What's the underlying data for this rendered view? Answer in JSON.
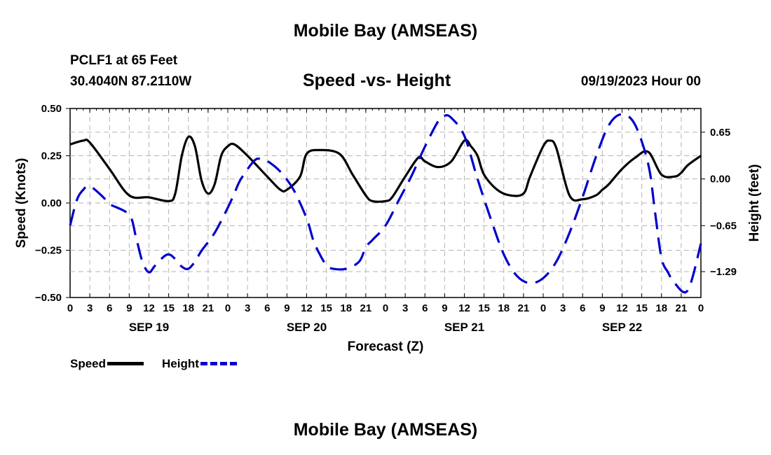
{
  "header": {
    "title": "Mobile Bay (AMSEAS)",
    "station": "PCLF1 at 65 Feet",
    "coords": "30.4040N  87.2110W",
    "chart_title": "Speed -vs- Height",
    "datetime": "09/19/2023 Hour 00"
  },
  "footer": {
    "title": "Mobile Bay (AMSEAS)"
  },
  "legend": {
    "speed_label": "Speed",
    "height_label": "Height"
  },
  "colors": {
    "speed": "#000000",
    "height": "#0000cc",
    "grid": "#b4b4b4"
  },
  "chart_data": {
    "type": "line",
    "title": "Speed -vs- Height",
    "xlabel": "Forecast (Z)",
    "ylabel": "Speed (Knots)",
    "y2label": "Height (feet)",
    "x_unit": "hours from 09/19/2023 00Z",
    "xlim": [
      0,
      96
    ],
    "ylim": [
      -0.5,
      0.5
    ],
    "y2lim": [
      -1.65,
      0.98
    ],
    "x_ticks": [
      0,
      3,
      6,
      9,
      12,
      15,
      18,
      21,
      24,
      27,
      30,
      33,
      36,
      39,
      42,
      45,
      48,
      51,
      54,
      57,
      60,
      63,
      66,
      69,
      72,
      75,
      78,
      81,
      84,
      87,
      90,
      93,
      96
    ],
    "x_tick_labels": [
      "0",
      "3",
      "6",
      "9",
      "12",
      "15",
      "18",
      "21",
      "0",
      "3",
      "6",
      "9",
      "12",
      "15",
      "18",
      "21",
      "0",
      "3",
      "6",
      "9",
      "12",
      "15",
      "18",
      "21",
      "0",
      "3",
      "6",
      "9",
      "12",
      "15",
      "18",
      "21",
      "0"
    ],
    "day_labels": [
      {
        "hour": 12,
        "label": "SEP 19"
      },
      {
        "hour": 36,
        "label": "SEP 20"
      },
      {
        "hour": 60,
        "label": "SEP 21"
      },
      {
        "hour": 84,
        "label": "SEP 22"
      }
    ],
    "y_ticks": [
      0.5,
      0.25,
      0.0,
      -0.25,
      -0.5
    ],
    "y_tick_labels": [
      "0.50",
      "0.25",
      "0.00",
      "−0.25",
      "−0.50"
    ],
    "y2_ticks": [
      0.65,
      0.0,
      -0.65,
      -1.29
    ],
    "y2_tick_labels": [
      "0.65",
      "0.00",
      "−0.65",
      "−1.29"
    ],
    "grid": true,
    "legend_position": "bottom-left",
    "series": [
      {
        "name": "Speed",
        "axis": "left",
        "style": "solid",
        "x": [
          0,
          2,
          3,
          6,
          9,
          12,
          15,
          16,
          17,
          18,
          19,
          20,
          21,
          22,
          23,
          24,
          25,
          27,
          30,
          32,
          33,
          35,
          36,
          38,
          41,
          43,
          45,
          46,
          48,
          49,
          51,
          53,
          54,
          56,
          58,
          60,
          61,
          62,
          63,
          65,
          67,
          69,
          70,
          72,
          73,
          74,
          76,
          78,
          80,
          81,
          82,
          84,
          86,
          88,
          90,
          92,
          93,
          94,
          96
        ],
        "y": [
          0.31,
          0.33,
          0.32,
          0.18,
          0.04,
          0.03,
          0.01,
          0.05,
          0.25,
          0.35,
          0.3,
          0.12,
          0.05,
          0.1,
          0.25,
          0.3,
          0.31,
          0.25,
          0.14,
          0.07,
          0.07,
          0.14,
          0.26,
          0.28,
          0.26,
          0.15,
          0.04,
          0.01,
          0.01,
          0.03,
          0.14,
          0.24,
          0.22,
          0.19,
          0.22,
          0.33,
          0.3,
          0.25,
          0.15,
          0.07,
          0.04,
          0.05,
          0.14,
          0.3,
          0.33,
          0.29,
          0.04,
          0.02,
          0.04,
          0.07,
          0.1,
          0.18,
          0.24,
          0.27,
          0.15,
          0.14,
          0.16,
          0.2,
          0.25
        ]
      },
      {
        "name": "Height",
        "axis": "right",
        "style": "dashed",
        "x": [
          0,
          1,
          2,
          3,
          5,
          6,
          9,
          10,
          11,
          12,
          13,
          15,
          17,
          18,
          19,
          20,
          22,
          24,
          25,
          26,
          28,
          29,
          30,
          32,
          34,
          36,
          37,
          38,
          39,
          40,
          42,
          44,
          45,
          46,
          48,
          50,
          52,
          54,
          56,
          57,
          58,
          60,
          62,
          64,
          66,
          68,
          70,
          72,
          74,
          76,
          78,
          80,
          82,
          84,
          86,
          88,
          89,
          90,
          91,
          92,
          94,
          96
        ],
        "y": [
          -0.65,
          -0.3,
          -0.15,
          -0.1,
          -0.25,
          -0.35,
          -0.5,
          -0.8,
          -1.15,
          -1.3,
          -1.2,
          -1.05,
          -1.22,
          -1.25,
          -1.15,
          -1.0,
          -0.75,
          -0.4,
          -0.2,
          0.0,
          0.25,
          0.28,
          0.25,
          0.1,
          -0.15,
          -0.55,
          -0.85,
          -1.05,
          -1.2,
          -1.25,
          -1.25,
          -1.15,
          -0.95,
          -0.85,
          -0.65,
          -0.3,
          0.05,
          0.45,
          0.8,
          0.88,
          0.85,
          0.6,
          0.0,
          -0.55,
          -1.05,
          -1.35,
          -1.45,
          -1.38,
          -1.15,
          -0.75,
          -0.25,
          0.3,
          0.75,
          0.9,
          0.75,
          0.2,
          -0.45,
          -1.1,
          -1.3,
          -1.45,
          -1.55,
          -0.9
        ]
      }
    ]
  }
}
